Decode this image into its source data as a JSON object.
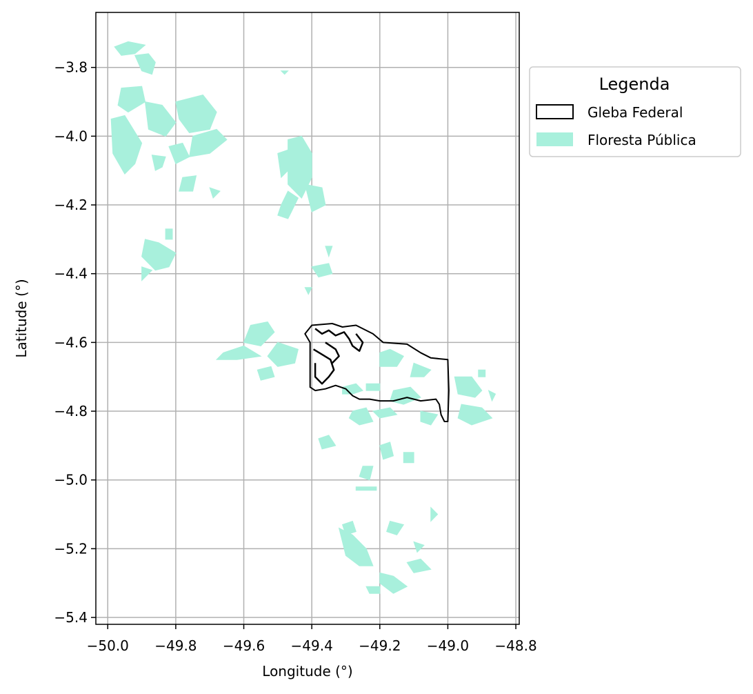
{
  "chart_data": {
    "type": "map",
    "xlabel": "Longitude (°)",
    "ylabel": "Latitude (°)",
    "xlim": [
      -50.035,
      -48.79
    ],
    "ylim": [
      -5.42,
      -3.64
    ],
    "x_ticks": [
      -50.0,
      -49.8,
      -49.6,
      -49.4,
      -49.2,
      -49.0,
      -48.8
    ],
    "y_ticks": [
      -3.8,
      -4.0,
      -4.2,
      -4.4,
      -4.6,
      -4.8,
      -5.0,
      -5.2,
      -5.4
    ],
    "x_tick_labels": [
      "−50.0",
      "−49.8",
      "−49.6",
      "−49.4",
      "−49.2",
      "−49.0",
      "−48.8"
    ],
    "y_tick_labels": [
      "−3.8",
      "−4.0",
      "−4.2",
      "−4.4",
      "−4.6",
      "−4.8",
      "−5.0",
      "−5.2",
      "−5.4"
    ],
    "grid": true,
    "legend": {
      "title": "Legenda",
      "placement": "outside-upper-right",
      "entries": [
        {
          "label": "Gleba Federal",
          "style": "outline",
          "color": "#000000"
        },
        {
          "label": "Floresta Pública",
          "style": "fill",
          "color": "#a8f0dc"
        }
      ]
    },
    "floresta_color": "#a8f0dc",
    "gleba_color": "#000000",
    "gleba_federal": [
      [
        -49.42,
        -4.575
      ],
      [
        -49.4,
        -4.55
      ],
      [
        -49.34,
        -4.545
      ],
      [
        -49.31,
        -4.555
      ],
      [
        -49.27,
        -4.55
      ],
      [
        -49.22,
        -4.575
      ],
      [
        -49.19,
        -4.6
      ],
      [
        -49.12,
        -4.605
      ],
      [
        -49.08,
        -4.63
      ],
      [
        -49.05,
        -4.645
      ],
      [
        -49.0,
        -4.65
      ],
      [
        -48.997,
        -4.74
      ],
      [
        -49.0,
        -4.83
      ],
      [
        -49.01,
        -4.83
      ],
      [
        -49.02,
        -4.81
      ],
      [
        -49.025,
        -4.78
      ],
      [
        -49.035,
        -4.765
      ],
      [
        -49.08,
        -4.77
      ],
      [
        -49.12,
        -4.76
      ],
      [
        -49.16,
        -4.77
      ],
      [
        -49.2,
        -4.77
      ],
      [
        -49.23,
        -4.765
      ],
      [
        -49.26,
        -4.765
      ],
      [
        -49.28,
        -4.755
      ],
      [
        -49.3,
        -4.735
      ],
      [
        -49.33,
        -4.725
      ],
      [
        -49.36,
        -4.735
      ],
      [
        -49.39,
        -4.74
      ],
      [
        -49.405,
        -4.73
      ],
      [
        -49.405,
        -4.6
      ],
      [
        -49.42,
        -4.575
      ]
    ],
    "gleba_inner": [
      [
        [
          -49.39,
          -4.56
        ],
        [
          -49.37,
          -4.575
        ],
        [
          -49.35,
          -4.565
        ],
        [
          -49.33,
          -4.58
        ],
        [
          -49.305,
          -4.57
        ],
        [
          -49.29,
          -4.59
        ],
        [
          -49.28,
          -4.61
        ],
        [
          -49.26,
          -4.625
        ],
        [
          -49.25,
          -4.6
        ],
        [
          -49.27,
          -4.575
        ]
      ],
      [
        [
          -49.395,
          -4.62
        ],
        [
          -49.37,
          -4.635
        ],
        [
          -49.345,
          -4.65
        ],
        [
          -49.335,
          -4.68
        ],
        [
          -49.35,
          -4.7
        ],
        [
          -49.37,
          -4.72
        ],
        [
          -49.39,
          -4.7
        ],
        [
          -49.39,
          -4.66
        ]
      ],
      [
        [
          -49.36,
          -4.6
        ],
        [
          -49.33,
          -4.62
        ],
        [
          -49.32,
          -4.64
        ],
        [
          -49.34,
          -4.66
        ]
      ]
    ],
    "floresta_publica": [
      [
        [
          -49.98,
          -3.74
        ],
        [
          -49.94,
          -3.725
        ],
        [
          -49.89,
          -3.735
        ],
        [
          -49.92,
          -3.76
        ],
        [
          -49.96,
          -3.765
        ]
      ],
      [
        [
          -49.92,
          -3.765
        ],
        [
          -49.88,
          -3.76
        ],
        [
          -49.86,
          -3.785
        ],
        [
          -49.87,
          -3.82
        ],
        [
          -49.9,
          -3.81
        ]
      ],
      [
        [
          -49.96,
          -3.86
        ],
        [
          -49.9,
          -3.855
        ],
        [
          -49.89,
          -3.9
        ],
        [
          -49.94,
          -3.93
        ],
        [
          -49.97,
          -3.91
        ]
      ],
      [
        [
          -49.99,
          -3.95
        ],
        [
          -49.95,
          -3.94
        ],
        [
          -49.9,
          -4.02
        ],
        [
          -49.92,
          -4.08
        ],
        [
          -49.95,
          -4.11
        ],
        [
          -49.985,
          -4.05
        ]
      ],
      [
        [
          -49.89,
          -3.9
        ],
        [
          -49.84,
          -3.91
        ],
        [
          -49.8,
          -3.96
        ],
        [
          -49.83,
          -4.0
        ],
        [
          -49.88,
          -3.98
        ]
      ],
      [
        [
          -49.8,
          -3.9
        ],
        [
          -49.72,
          -3.88
        ],
        [
          -49.68,
          -3.93
        ],
        [
          -49.7,
          -3.98
        ],
        [
          -49.76,
          -3.99
        ],
        [
          -49.79,
          -3.95
        ]
      ],
      [
        [
          -49.75,
          -4.0
        ],
        [
          -49.68,
          -3.98
        ],
        [
          -49.65,
          -4.01
        ],
        [
          -49.7,
          -4.05
        ],
        [
          -49.76,
          -4.06
        ]
      ],
      [
        [
          -49.82,
          -4.03
        ],
        [
          -49.78,
          -4.02
        ],
        [
          -49.76,
          -4.06
        ],
        [
          -49.8,
          -4.08
        ]
      ],
      [
        [
          -49.87,
          -4.055
        ],
        [
          -49.83,
          -4.06
        ],
        [
          -49.84,
          -4.09
        ],
        [
          -49.86,
          -4.1
        ]
      ],
      [
        [
          -49.78,
          -4.12
        ],
        [
          -49.74,
          -4.115
        ],
        [
          -49.75,
          -4.16
        ],
        [
          -49.79,
          -4.16
        ]
      ],
      [
        [
          -49.7,
          -4.15
        ],
        [
          -49.67,
          -4.16
        ],
        [
          -49.69,
          -4.18
        ]
      ],
      [
        [
          -49.89,
          -4.3
        ],
        [
          -49.85,
          -4.31
        ],
        [
          -49.8,
          -4.34
        ],
        [
          -49.82,
          -4.38
        ],
        [
          -49.86,
          -4.39
        ],
        [
          -49.9,
          -4.35
        ]
      ],
      [
        [
          -49.9,
          -4.38
        ],
        [
          -49.87,
          -4.39
        ],
        [
          -49.9,
          -4.42
        ]
      ],
      [
        [
          -49.83,
          -4.27
        ],
        [
          -49.81,
          -4.27
        ],
        [
          -49.81,
          -4.3
        ],
        [
          -49.83,
          -4.3
        ]
      ],
      [
        [
          -49.47,
          -4.01
        ],
        [
          -49.43,
          -4.0
        ],
        [
          -49.4,
          -4.05
        ],
        [
          -49.4,
          -4.12
        ],
        [
          -49.43,
          -4.18
        ],
        [
          -49.47,
          -4.14
        ]
      ],
      [
        [
          -49.5,
          -4.05
        ],
        [
          -49.47,
          -4.04
        ],
        [
          -49.46,
          -4.09
        ],
        [
          -49.49,
          -4.12
        ]
      ],
      [
        [
          -49.42,
          -4.14
        ],
        [
          -49.37,
          -4.15
        ],
        [
          -49.36,
          -4.2
        ],
        [
          -49.4,
          -4.22
        ]
      ],
      [
        [
          -49.47,
          -4.16
        ],
        [
          -49.44,
          -4.18
        ],
        [
          -49.46,
          -4.22
        ],
        [
          -49.49,
          -4.2
        ]
      ],
      [
        [
          -49.49,
          -4.2
        ],
        [
          -49.46,
          -4.22
        ],
        [
          -49.47,
          -4.24
        ],
        [
          -49.5,
          -4.23
        ]
      ],
      [
        [
          -49.49,
          -3.81
        ],
        [
          -49.47,
          -3.81
        ],
        [
          -49.48,
          -3.82
        ]
      ],
      [
        [
          -49.36,
          -4.32
        ],
        [
          -49.34,
          -4.32
        ],
        [
          -49.35,
          -4.35
        ]
      ],
      [
        [
          -49.4,
          -4.38
        ],
        [
          -49.35,
          -4.37
        ],
        [
          -49.34,
          -4.4
        ],
        [
          -49.38,
          -4.41
        ]
      ],
      [
        [
          -49.42,
          -4.44
        ],
        [
          -49.4,
          -4.44
        ],
        [
          -49.41,
          -4.46
        ]
      ],
      [
        [
          -49.58,
          -4.55
        ],
        [
          -49.53,
          -4.54
        ],
        [
          -49.51,
          -4.57
        ],
        [
          -49.55,
          -4.61
        ],
        [
          -49.6,
          -4.6
        ]
      ],
      [
        [
          -49.66,
          -4.63
        ],
        [
          -49.6,
          -4.61
        ],
        [
          -49.55,
          -4.64
        ],
        [
          -49.62,
          -4.65
        ],
        [
          -49.68,
          -4.65
        ]
      ],
      [
        [
          -49.5,
          -4.6
        ],
        [
          -49.44,
          -4.62
        ],
        [
          -49.45,
          -4.66
        ],
        [
          -49.5,
          -4.67
        ],
        [
          -49.53,
          -4.64
        ]
      ],
      [
        [
          -49.56,
          -4.68
        ],
        [
          -49.52,
          -4.67
        ],
        [
          -49.51,
          -4.7
        ],
        [
          -49.55,
          -4.71
        ]
      ],
      [
        [
          -49.31,
          -4.73
        ],
        [
          -49.27,
          -4.72
        ],
        [
          -49.25,
          -4.74
        ],
        [
          -49.28,
          -4.75
        ],
        [
          -49.31,
          -4.75
        ]
      ],
      [
        [
          -49.24,
          -4.72
        ],
        [
          -49.2,
          -4.72
        ],
        [
          -49.2,
          -4.74
        ],
        [
          -49.24,
          -4.74
        ]
      ],
      [
        [
          -49.2,
          -4.63
        ],
        [
          -49.17,
          -4.62
        ],
        [
          -49.13,
          -4.64
        ],
        [
          -49.15,
          -4.67
        ],
        [
          -49.2,
          -4.67
        ]
      ],
      [
        [
          -49.16,
          -4.74
        ],
        [
          -49.11,
          -4.73
        ],
        [
          -49.08,
          -4.76
        ],
        [
          -49.13,
          -4.78
        ],
        [
          -49.17,
          -4.77
        ]
      ],
      [
        [
          -49.1,
          -4.66
        ],
        [
          -49.05,
          -4.68
        ],
        [
          -49.07,
          -4.7
        ],
        [
          -49.11,
          -4.7
        ]
      ],
      [
        [
          -49.28,
          -4.8
        ],
        [
          -49.24,
          -4.79
        ],
        [
          -49.22,
          -4.83
        ],
        [
          -49.26,
          -4.84
        ],
        [
          -49.29,
          -4.82
        ]
      ],
      [
        [
          -49.22,
          -4.8
        ],
        [
          -49.17,
          -4.79
        ],
        [
          -49.15,
          -4.81
        ],
        [
          -49.2,
          -4.82
        ]
      ],
      [
        [
          -49.08,
          -4.8
        ],
        [
          -49.03,
          -4.81
        ],
        [
          -49.05,
          -4.84
        ],
        [
          -49.08,
          -4.83
        ]
      ],
      [
        [
          -48.98,
          -4.7
        ],
        [
          -48.93,
          -4.7
        ],
        [
          -48.9,
          -4.74
        ],
        [
          -48.92,
          -4.76
        ],
        [
          -48.97,
          -4.75
        ]
      ],
      [
        [
          -48.96,
          -4.78
        ],
        [
          -48.9,
          -4.79
        ],
        [
          -48.87,
          -4.82
        ],
        [
          -48.93,
          -4.84
        ],
        [
          -48.97,
          -4.82
        ]
      ],
      [
        [
          -48.91,
          -4.68
        ],
        [
          -48.89,
          -4.68
        ],
        [
          -48.89,
          -4.7
        ],
        [
          -48.91,
          -4.7
        ]
      ],
      [
        [
          -48.88,
          -4.74
        ],
        [
          -48.86,
          -4.75
        ],
        [
          -48.87,
          -4.77
        ]
      ],
      [
        [
          -49.38,
          -4.88
        ],
        [
          -49.35,
          -4.87
        ],
        [
          -49.33,
          -4.9
        ],
        [
          -49.37,
          -4.91
        ]
      ],
      [
        [
          -49.2,
          -4.9
        ],
        [
          -49.17,
          -4.89
        ],
        [
          -49.16,
          -4.93
        ],
        [
          -49.19,
          -4.94
        ]
      ],
      [
        [
          -49.25,
          -4.96
        ],
        [
          -49.22,
          -4.96
        ],
        [
          -49.23,
          -5.0
        ],
        [
          -49.26,
          -4.99
        ]
      ],
      [
        [
          -49.13,
          -4.92
        ],
        [
          -49.1,
          -4.92
        ],
        [
          -49.1,
          -4.95
        ],
        [
          -49.13,
          -4.95
        ]
      ],
      [
        [
          -49.27,
          -5.02
        ],
        [
          -49.21,
          -5.02
        ],
        [
          -49.21,
          -5.03
        ],
        [
          -49.27,
          -5.03
        ]
      ],
      [
        [
          -49.05,
          -5.08
        ],
        [
          -49.03,
          -5.1
        ],
        [
          -49.05,
          -5.12
        ]
      ],
      [
        [
          -49.31,
          -5.13
        ],
        [
          -49.28,
          -5.12
        ],
        [
          -49.27,
          -5.15
        ],
        [
          -49.3,
          -5.16
        ]
      ],
      [
        [
          -49.32,
          -5.14
        ],
        [
          -49.28,
          -5.16
        ],
        [
          -49.24,
          -5.2
        ],
        [
          -49.22,
          -5.25
        ],
        [
          -49.26,
          -5.25
        ],
        [
          -49.3,
          -5.22
        ],
        [
          -49.31,
          -5.18
        ]
      ],
      [
        [
          -49.2,
          -5.27
        ],
        [
          -49.16,
          -5.28
        ],
        [
          -49.12,
          -5.31
        ],
        [
          -49.16,
          -5.33
        ],
        [
          -49.2,
          -5.3
        ]
      ],
      [
        [
          -49.12,
          -5.24
        ],
        [
          -49.08,
          -5.23
        ],
        [
          -49.05,
          -5.26
        ],
        [
          -49.1,
          -5.27
        ]
      ],
      [
        [
          -49.24,
          -5.31
        ],
        [
          -49.2,
          -5.31
        ],
        [
          -49.2,
          -5.33
        ],
        [
          -49.23,
          -5.33
        ]
      ],
      [
        [
          -49.17,
          -5.12
        ],
        [
          -49.13,
          -5.13
        ],
        [
          -49.15,
          -5.16
        ],
        [
          -49.18,
          -5.15
        ]
      ],
      [
        [
          -49.1,
          -5.18
        ],
        [
          -49.07,
          -5.19
        ],
        [
          -49.09,
          -5.21
        ]
      ]
    ]
  }
}
